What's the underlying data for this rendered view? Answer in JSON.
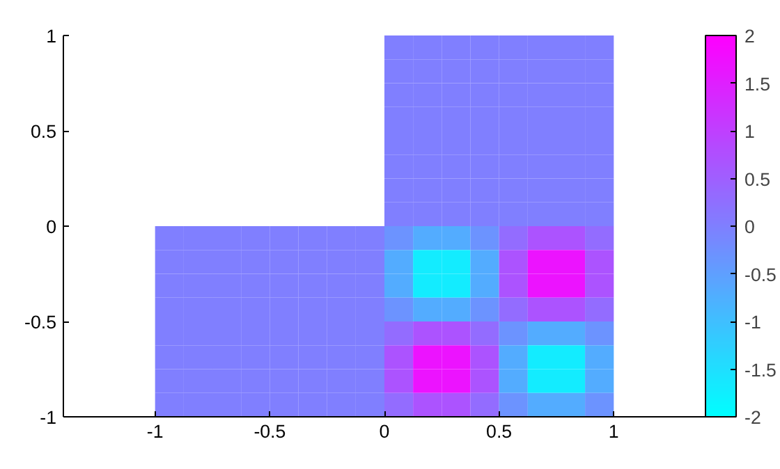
{
  "chart_data": {
    "type": "heatmap",
    "x": [
      -0.9375,
      -0.8125,
      -0.6875,
      -0.5625,
      -0.4375,
      -0.3125,
      -0.1875,
      -0.0625,
      0.0625,
      0.1875,
      0.3125,
      0.4375,
      0.5625,
      0.6875,
      0.8125,
      0.9375
    ],
    "y": [
      0.9375,
      0.8125,
      0.6875,
      0.5625,
      0.4375,
      0.3125,
      0.1875,
      0.0625,
      -0.0625,
      -0.1875,
      -0.3125,
      -0.4375,
      -0.5625,
      -0.6875,
      -0.8125,
      -0.9375
    ],
    "cells": [
      [
        null,
        null,
        null,
        null,
        null,
        null,
        null,
        null,
        0,
        0,
        0,
        0,
        0,
        0,
        0,
        0
      ],
      [
        null,
        null,
        null,
        null,
        null,
        null,
        null,
        null,
        0,
        0,
        0,
        0,
        0,
        0,
        0,
        0
      ],
      [
        null,
        null,
        null,
        null,
        null,
        null,
        null,
        null,
        0,
        0,
        0,
        0,
        0,
        0,
        0,
        0
      ],
      [
        null,
        null,
        null,
        null,
        null,
        null,
        null,
        null,
        0,
        0,
        0,
        0,
        0,
        0,
        0,
        0
      ],
      [
        null,
        null,
        null,
        null,
        null,
        null,
        null,
        null,
        0,
        0,
        0,
        0,
        0,
        0,
        0,
        0
      ],
      [
        null,
        null,
        null,
        null,
        null,
        null,
        null,
        null,
        0,
        0,
        0,
        0,
        0,
        0,
        0,
        0
      ],
      [
        null,
        null,
        null,
        null,
        null,
        null,
        null,
        null,
        0,
        0,
        0,
        0,
        0,
        0,
        0,
        0
      ],
      [
        null,
        null,
        null,
        null,
        null,
        null,
        null,
        null,
        0,
        0,
        0,
        0,
        0,
        0,
        0,
        0
      ],
      [
        0,
        0,
        0,
        0,
        0,
        0,
        0,
        0,
        -0.3,
        -0.7,
        -0.7,
        -0.3,
        0.3,
        0.7,
        0.7,
        0.3
      ],
      [
        0,
        0,
        0,
        0,
        0,
        0,
        0,
        0,
        -0.7,
        -1.7,
        -1.7,
        -0.7,
        0.7,
        1.7,
        1.7,
        0.7
      ],
      [
        0,
        0,
        0,
        0,
        0,
        0,
        0,
        0,
        -0.7,
        -1.7,
        -1.7,
        -0.7,
        0.7,
        1.7,
        1.7,
        0.7
      ],
      [
        0,
        0,
        0,
        0,
        0,
        0,
        0,
        0,
        -0.3,
        -0.7,
        -0.7,
        -0.3,
        0.3,
        0.7,
        0.7,
        0.3
      ],
      [
        0,
        0,
        0,
        0,
        0,
        0,
        0,
        0,
        0.3,
        0.7,
        0.7,
        0.3,
        -0.3,
        -0.7,
        -0.7,
        -0.3
      ],
      [
        0,
        0,
        0,
        0,
        0,
        0,
        0,
        0,
        0.7,
        1.7,
        1.7,
        0.7,
        -0.7,
        -1.7,
        -1.7,
        -0.7
      ],
      [
        0,
        0,
        0,
        0,
        0,
        0,
        0,
        0,
        0.7,
        1.7,
        1.7,
        0.7,
        -0.7,
        -1.7,
        -1.7,
        -0.7
      ],
      [
        0,
        0,
        0,
        0,
        0,
        0,
        0,
        0,
        0.3,
        0.7,
        0.7,
        0.3,
        -0.3,
        -0.7,
        -0.7,
        -0.3
      ]
    ],
    "colors": [
      "#00ffff",
      "#ff00ff"
    ],
    "clim": [
      -2,
      2
    ],
    "cticks": [
      -2,
      -1.5,
      -1,
      -0.5,
      0,
      0.5,
      1,
      1.5,
      2
    ],
    "xlim": [
      -1.4,
      1.4
    ],
    "ylim": [
      -1,
      1
    ],
    "xticks": [
      -1,
      -0.5,
      0,
      0.5,
      1
    ],
    "yticks": [
      -1,
      -0.5,
      0,
      0.5,
      1
    ],
    "grid": false
  }
}
